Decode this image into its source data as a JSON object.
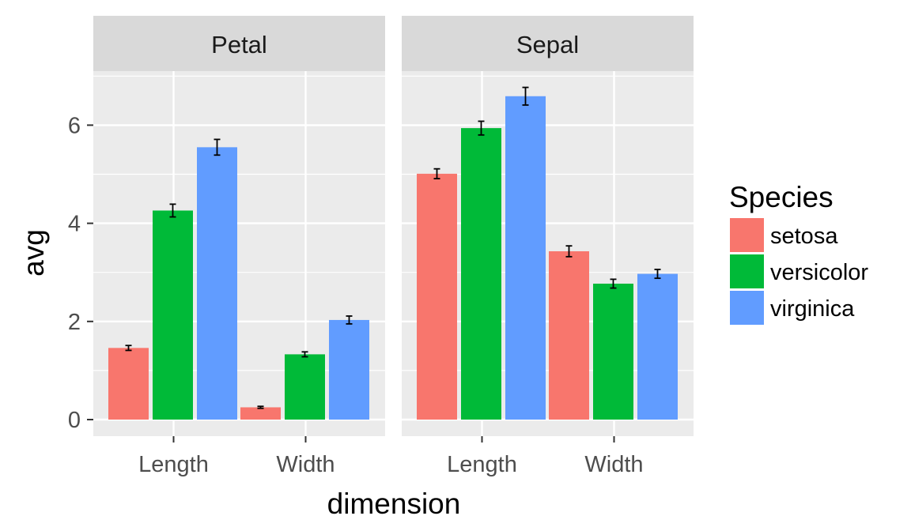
{
  "chart_data": {
    "type": "bar",
    "xlabel": "dimension",
    "ylabel": "avg",
    "ylim": [
      0,
      7
    ],
    "y_ticks": [
      0,
      2,
      4,
      6
    ],
    "grid": true,
    "legend_title": "Species",
    "legend_position": "right",
    "facets": [
      {
        "strip_label": "Petal",
        "categories": [
          "Length",
          "Width"
        ],
        "series": [
          {
            "name": "setosa",
            "values": [
              1.46,
              0.25
            ],
            "errors": [
              0.05,
              0.02
            ]
          },
          {
            "name": "versicolor",
            "values": [
              4.26,
              1.33
            ],
            "errors": [
              0.13,
              0.05
            ]
          },
          {
            "name": "virginica",
            "values": [
              5.55,
              2.03
            ],
            "errors": [
              0.16,
              0.08
            ]
          }
        ]
      },
      {
        "strip_label": "Sepal",
        "categories": [
          "Length",
          "Width"
        ],
        "series": [
          {
            "name": "setosa",
            "values": [
              5.01,
              3.43
            ],
            "errors": [
              0.1,
              0.11
            ]
          },
          {
            "name": "versicolor",
            "values": [
              5.94,
              2.77
            ],
            "errors": [
              0.14,
              0.09
            ]
          },
          {
            "name": "virginica",
            "values": [
              6.59,
              2.97
            ],
            "errors": [
              0.18,
              0.09
            ]
          }
        ]
      }
    ],
    "colors": {
      "setosa": "#F8766D",
      "versicolor": "#00BA38",
      "virginica": "#619CFF",
      "panel_background": "#EBEBEB",
      "strip_background": "#D9D9D9",
      "grid": "#FFFFFF"
    }
  }
}
